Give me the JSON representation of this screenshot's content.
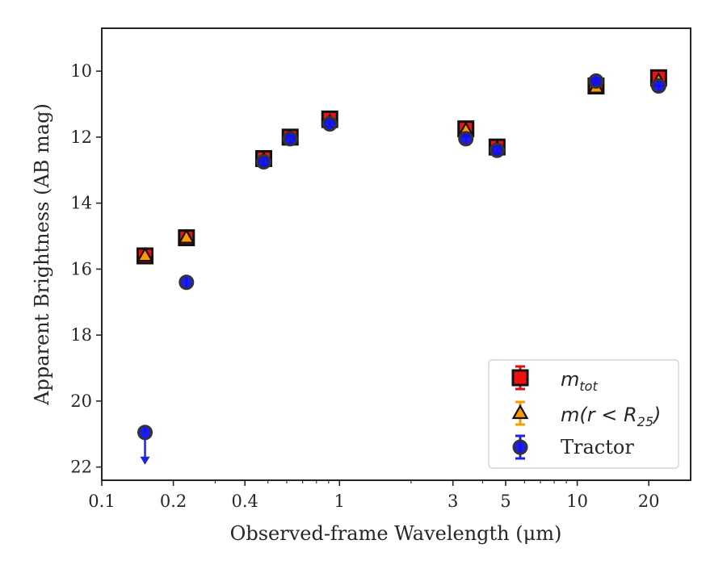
{
  "chart_data": {
    "type": "scatter",
    "xlabel": "Observed-frame Wavelength (μm)",
    "ylabel": "Apparent Brightness (AB mag)",
    "xscale": "log",
    "xlim": [
      0.1,
      30
    ],
    "ylim": [
      22.4,
      8.7
    ],
    "y_inverted": true,
    "x_ticks": [
      0.1,
      0.2,
      0.4,
      1,
      3,
      5,
      10,
      20
    ],
    "x_tick_labels": [
      "0.1",
      "0.2",
      "0.4",
      "1",
      "3",
      "5",
      "10",
      "20"
    ],
    "y_ticks": [
      10,
      12,
      14,
      16,
      18,
      20,
      22
    ],
    "y_tick_labels": [
      "10",
      "12",
      "14",
      "16",
      "18",
      "20",
      "22"
    ],
    "grid": false,
    "legend_position": "lower-right",
    "series": [
      {
        "name_main": "m",
        "name_sub": "tot",
        "marker": "square",
        "color": "#ee1111",
        "edge_color": "#111111",
        "x": [
          0.152,
          0.227,
          0.48,
          0.62,
          0.91,
          3.4,
          4.6,
          12.0,
          22.0
        ],
        "y": [
          15.6,
          15.05,
          12.65,
          12.0,
          11.45,
          11.75,
          12.3,
          10.45,
          10.2
        ]
      },
      {
        "name_main": "m(r < R",
        "name_sub": "25",
        "name_tail": ")",
        "marker": "triangle",
        "color": "#ff9900",
        "edge_color": "#111111",
        "x": [
          0.152,
          0.227,
          0.48,
          0.62,
          0.91,
          3.4,
          4.6,
          12.0,
          22.0
        ],
        "y": [
          15.6,
          15.05,
          12.7,
          12.05,
          11.55,
          11.8,
          12.35,
          10.5,
          10.3
        ]
      },
      {
        "name": "Tractor",
        "marker": "circle",
        "color": "#1111ee",
        "edge_color": "#333333",
        "x": [
          0.152,
          0.227,
          0.48,
          0.62,
          0.91,
          3.4,
          4.6,
          12.0,
          22.0
        ],
        "y": [
          20.95,
          16.4,
          12.75,
          12.05,
          11.6,
          12.05,
          12.4,
          10.3,
          10.45
        ],
        "upper_limit_index": 0
      }
    ]
  }
}
